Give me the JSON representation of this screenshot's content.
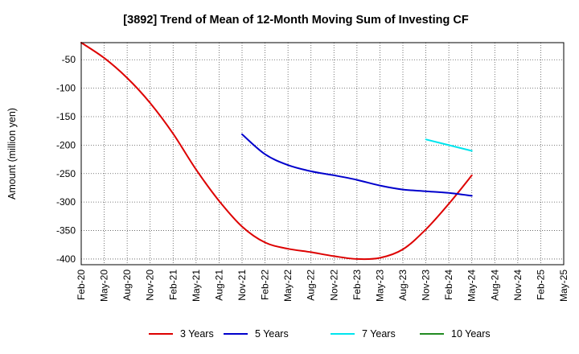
{
  "chart_data": {
    "type": "line",
    "title": "[3892]  Trend of Mean of 12-Month Moving Sum of Investing CF",
    "xlabel": "",
    "ylabel": "Amount (million yen)",
    "ylim": [
      -410,
      -20
    ],
    "yticks": [
      -50,
      -100,
      -150,
      -200,
      -250,
      -300,
      -350,
      -400
    ],
    "categories": [
      "Feb-20",
      "May-20",
      "Aug-20",
      "Nov-20",
      "Feb-21",
      "May-21",
      "Aug-21",
      "Nov-21",
      "Feb-22",
      "May-22",
      "Aug-22",
      "Nov-22",
      "Feb-23",
      "May-23",
      "Aug-23",
      "Nov-23",
      "Feb-24",
      "May-24",
      "Aug-24",
      "Nov-24",
      "Feb-25",
      "May-25"
    ],
    "series": [
      {
        "name": "3 Years",
        "color": "#dd0000",
        "values": [
          -20,
          -47,
          -82,
          -126,
          -180,
          -243,
          -298,
          -343,
          -371,
          -382,
          -388,
          -395,
          -400,
          -398,
          -383,
          -348,
          -303,
          -253,
          null,
          null,
          null,
          null
        ]
      },
      {
        "name": "5 Years",
        "color": "#0000cc",
        "values": [
          null,
          null,
          null,
          null,
          null,
          null,
          null,
          -181,
          -216,
          -235,
          -246,
          -253,
          -261,
          -271,
          -278,
          -281,
          -284,
          -289,
          null,
          null,
          null,
          null
        ]
      },
      {
        "name": "7 Years",
        "color": "#00e5ee",
        "values": [
          null,
          null,
          null,
          null,
          null,
          null,
          null,
          null,
          null,
          null,
          null,
          null,
          null,
          null,
          null,
          -190,
          -200,
          -210,
          null,
          null,
          null,
          null
        ]
      },
      {
        "name": "10 Years",
        "color": "#228b22",
        "values": [
          null,
          null,
          null,
          null,
          null,
          null,
          null,
          null,
          null,
          null,
          null,
          null,
          null,
          null,
          null,
          null,
          null,
          null,
          null,
          null,
          null,
          null
        ]
      }
    ],
    "legend_position": "bottom",
    "grid": true
  }
}
